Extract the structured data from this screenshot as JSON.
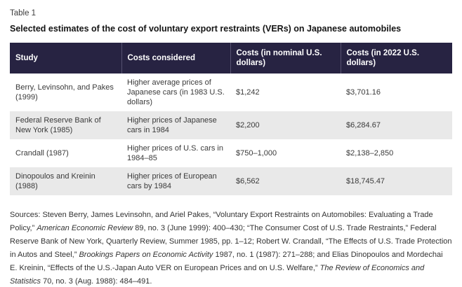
{
  "page": {
    "table_label": "Table 1",
    "title": "Selected estimates of the cost of voluntary export restraints (VERs) on Japanese automobiles"
  },
  "table": {
    "columns": [
      "Study",
      "Costs considered",
      "Costs (in nominal U.S. dollars)",
      "Costs (in 2022 U.S. dollars)"
    ],
    "rows": [
      {
        "study": "Berry, Levinsohn, and Pakes (1999)",
        "costs_considered": "Higher average prices of Japanese cars (in 1983 U.S. dollars)",
        "costs_nominal": "$1,242",
        "costs_2022": "$3,701.16"
      },
      {
        "study": "Federal Reserve Bank of New York (1985)",
        "costs_considered": "Higher prices of Japanese cars in 1984",
        "costs_nominal": "$2,200",
        "costs_2022": "$6,284.67"
      },
      {
        "study": "Crandall (1987)",
        "costs_considered": "Higher prices of U.S. cars in 1984–85",
        "costs_nominal": "$750–1,000",
        "costs_2022": "$2,138–2,850"
      },
      {
        "study": "Dinopoulos and Kreinin (1988)",
        "costs_considered": "Higher prices of European cars by 1984",
        "costs_nominal": "$6,562",
        "costs_2022": "$18,745.47"
      }
    ]
  },
  "chart_data": {
    "type": "table",
    "title": "Selected estimates of the cost of voluntary export restraints (VERs) on Japanese automobiles",
    "columns": [
      "Study",
      "Costs considered",
      "Costs (in nominal U.S. dollars)",
      "Costs (in 2022 U.S. dollars)"
    ],
    "rows": [
      [
        "Berry, Levinsohn, and Pakes (1999)",
        "Higher average prices of Japanese cars (in 1983 U.S. dollars)",
        "$1,242",
        "$3,701.16"
      ],
      [
        "Federal Reserve Bank of New York (1985)",
        "Higher prices of Japanese cars in 1984",
        "$2,200",
        "$6,284.67"
      ],
      [
        "Crandall (1987)",
        "Higher prices of U.S. cars in 1984–85",
        "$750–1,000",
        "$2,138–2,850"
      ],
      [
        "Dinopoulos and Kreinin (1988)",
        "Higher prices of European cars by 1984",
        "$6,562",
        "$18,745.47"
      ]
    ]
  },
  "sources": {
    "segments": [
      {
        "text": "Sources: Steven Berry, James Levinsohn, and Ariel Pakes, “Voluntary Export Restraints on Automobiles: Evaluating a Trade Policy,” ",
        "italic": false
      },
      {
        "text": "American Economic Review",
        "italic": true
      },
      {
        "text": " 89, no. 3 (June 1999): 400–430; “The Consumer Cost of U.S. Trade Restraints,” Federal Reserve Bank of New York, Quarterly Review, Summer 1985, pp. 1–12; Robert W. Crandall, “The Effects of U.S. Trade Protection in Autos and Steel,” ",
        "italic": false
      },
      {
        "text": "Brookings Papers on Economic Activity",
        "italic": true
      },
      {
        "text": " 1987, no. 1 (1987): 271–288; and Elias Dinopoulos and Mordechai E. Kreinin, “Effects of the U.S.-Japan Auto VER on European Prices and on U.S. Welfare,” ",
        "italic": false
      },
      {
        "text": "The Review of Economics and Statistics",
        "italic": true
      },
      {
        "text": " 70, no. 3 (Aug. 1988): 484–491.",
        "italic": false
      }
    ]
  },
  "colors": {
    "header_bg": "#272342",
    "header_divider": "#565170",
    "header_text": "#ffffff",
    "row_alt_bg": "#e9e9e9",
    "body_text": "#3a3a3a"
  }
}
